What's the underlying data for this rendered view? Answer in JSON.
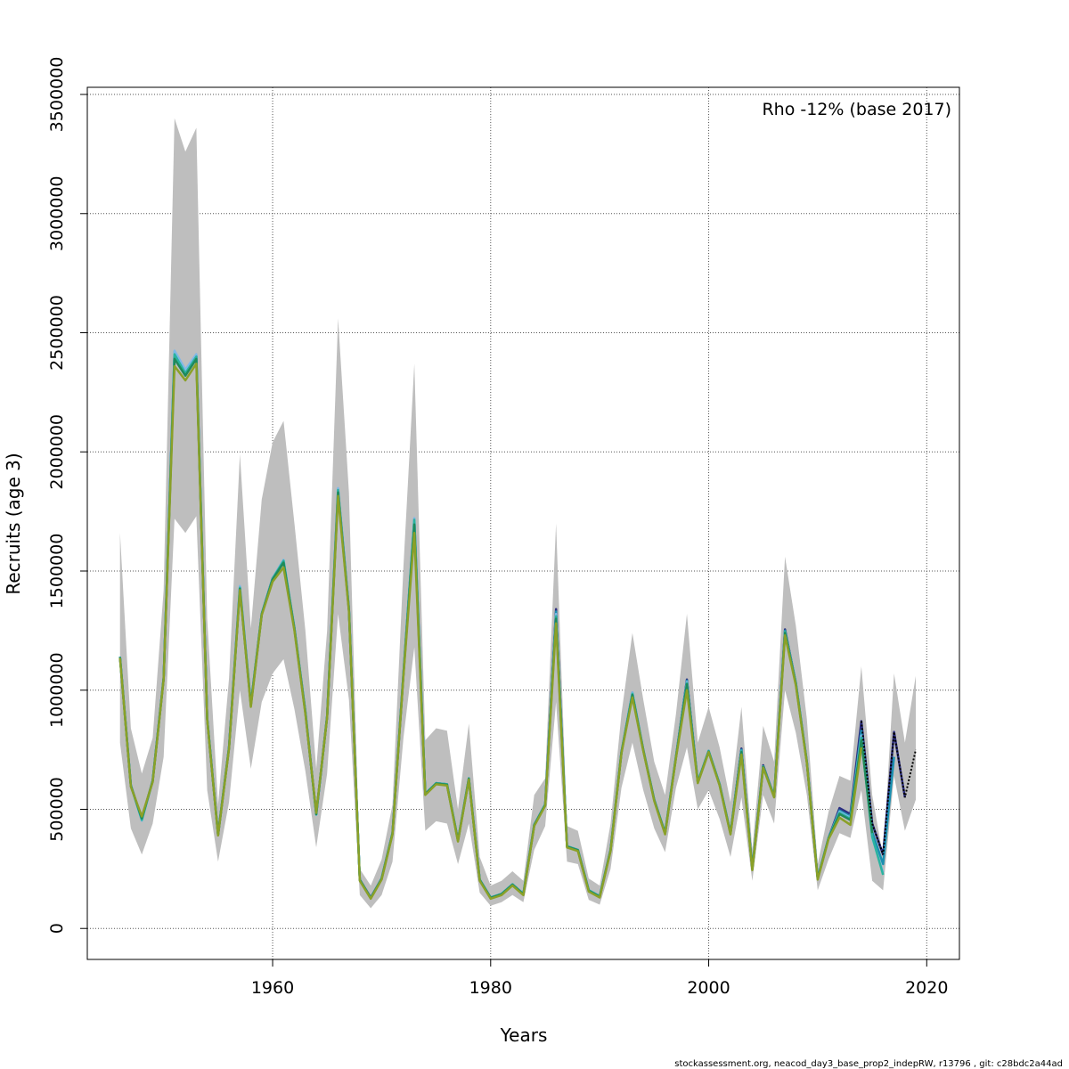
{
  "chart_data": {
    "type": "line",
    "title": "",
    "xlabel": "Years",
    "ylabel": "Recruits (age 3)",
    "annotation": "Rho -12% (base 2017)",
    "footer": "stockassessment.org, neacod_day3_base_prop2_indepRW, r13796 , git: c28bdc2a44ad",
    "xlim": [
      1943,
      2023
    ],
    "ylim": [
      -130000,
      3530000
    ],
    "grid": true,
    "x_ticks": [
      1960,
      1980,
      2000,
      2020
    ],
    "y_ticks": [
      0,
      500000,
      1000000,
      1500000,
      2000000,
      2500000,
      3000000,
      3500000
    ],
    "x_tick_labels": [
      "1960",
      "1980",
      "2000",
      "2020"
    ],
    "y_tick_labels": [
      "0",
      "500000",
      "1000000",
      "1500000",
      "2000000",
      "2500000",
      "3000000",
      "3500000"
    ],
    "confidence_band": {
      "color": "#bebebe",
      "x": [
        1946,
        1947,
        1948,
        1949,
        1950,
        1951,
        1952,
        1953,
        1954,
        1955,
        1956,
        1957,
        1958,
        1959,
        1960,
        1961,
        1962,
        1963,
        1964,
        1965,
        1966,
        1967,
        1968,
        1969,
        1970,
        1971,
        1972,
        1973,
        1974,
        1975,
        1976,
        1977,
        1978,
        1979,
        1980,
        1981,
        1982,
        1983,
        1984,
        1985,
        1986,
        1987,
        1988,
        1989,
        1990,
        1991,
        1992,
        1993,
        1994,
        1995,
        1996,
        1997,
        1998,
        1999,
        2000,
        2001,
        2002,
        2003,
        2004,
        2005,
        2006,
        2007,
        2008,
        2009,
        2010,
        2011,
        2012,
        2013,
        2014,
        2015,
        2016,
        2017,
        2018,
        2019
      ],
      "upper": [
        1660000,
        840000,
        650000,
        800000,
        1420000,
        3400000,
        3260000,
        3360000,
        1300000,
        520000,
        1050000,
        1990000,
        1260000,
        1800000,
        2040000,
        2130000,
        1700000,
        1250000,
        670000,
        1250000,
        2560000,
        1830000,
        250000,
        180000,
        290000,
        520000,
        1520000,
        2370000,
        790000,
        840000,
        830000,
        500000,
        860000,
        300000,
        180000,
        200000,
        240000,
        200000,
        560000,
        630000,
        1700000,
        430000,
        410000,
        210000,
        180000,
        440000,
        900000,
        1240000,
        960000,
        700000,
        560000,
        900000,
        1320000,
        780000,
        930000,
        760000,
        530000,
        930000,
        330000,
        850000,
        700000,
        1560000,
        1270000,
        880000,
        270000,
        490000,
        640000,
        620000,
        1100000,
        560000,
        300000,
        1070000,
        780000,
        1060000
      ],
      "lower": [
        780000,
        420000,
        310000,
        440000,
        720000,
        1720000,
        1660000,
        1730000,
        580000,
        280000,
        530000,
        1000000,
        670000,
        950000,
        1070000,
        1130000,
        920000,
        660000,
        340000,
        650000,
        1320000,
        960000,
        140000,
        85000,
        140000,
        280000,
        800000,
        1180000,
        410000,
        450000,
        440000,
        270000,
        440000,
        150000,
        95000,
        110000,
        140000,
        110000,
        330000,
        430000,
        950000,
        280000,
        270000,
        120000,
        100000,
        250000,
        590000,
        780000,
        580000,
        420000,
        320000,
        590000,
        760000,
        500000,
        580000,
        460000,
        300000,
        550000,
        200000,
        560000,
        440000,
        1000000,
        820000,
        560000,
        160000,
        290000,
        400000,
        380000,
        580000,
        200000,
        160000,
        640000,
        410000,
        540000
      ]
    },
    "series": [
      {
        "color": "#2c2e81",
        "x": [
          1946,
          1947,
          1948,
          1949,
          1950,
          1951,
          1952,
          1953,
          1954,
          1955,
          1956,
          1957,
          1958,
          1959,
          1960,
          1961,
          1962,
          1963,
          1964,
          1965,
          1966,
          1967,
          1968,
          1969,
          1970,
          1971,
          1972,
          1973,
          1974,
          1975,
          1976,
          1977,
          1978,
          1979,
          1980,
          1981,
          1982,
          1983,
          1984,
          1985,
          1986,
          1987,
          1988,
          1989,
          1990,
          1991,
          1992,
          1993,
          1994,
          1995,
          1996,
          1997,
          1998,
          1999,
          2000,
          2001,
          2002,
          2003,
          2004,
          2005,
          2006,
          2007,
          2008,
          2009,
          2010,
          2011,
          2012,
          2013,
          2014,
          2015,
          2016,
          2017,
          2018
        ],
        "values": [
          1140000,
          600000,
          460000,
          620000,
          1050000,
          2410000,
          2330000,
          2400000,
          880000,
          395000,
          760000,
          1430000,
          940000,
          1320000,
          1470000,
          1540000,
          1260000,
          910000,
          480000,
          890000,
          1840000,
          1340000,
          205000,
          130000,
          210000,
          400000,
          1070000,
          1710000,
          565000,
          610000,
          605000,
          370000,
          630000,
          205000,
          130000,
          145000,
          185000,
          145000,
          435000,
          520000,
          1340000,
          345000,
          330000,
          160000,
          135000,
          330000,
          740000,
          985000,
          750000,
          540000,
          400000,
          720000,
          1045000,
          615000,
          745000,
          605000,
          400000,
          755000,
          250000,
          685000,
          555000,
          1255000,
          1030000,
          700000,
          210000,
          380000,
          505000,
          480000,
          870000,
          440000,
          310000,
          825000,
          550000
        ]
      },
      {
        "color": "#1a8fb0",
        "x": [
          1946,
          1947,
          1948,
          1949,
          1950,
          1951,
          1952,
          1953,
          1954,
          1955,
          1956,
          1957,
          1958,
          1959,
          1960,
          1961,
          1962,
          1963,
          1964,
          1965,
          1966,
          1967,
          1968,
          1969,
          1970,
          1971,
          1972,
          1973,
          1974,
          1975,
          1976,
          1977,
          1978,
          1979,
          1980,
          1981,
          1982,
          1983,
          1984,
          1985,
          1986,
          1987,
          1988,
          1989,
          1990,
          1991,
          1992,
          1993,
          1994,
          1995,
          1996,
          1997,
          1998,
          1999,
          2000,
          2001,
          2002,
          2003,
          2004,
          2005,
          2006,
          2007,
          2008,
          2009,
          2010,
          2011,
          2012,
          2013,
          2014,
          2015,
          2016,
          2017
        ],
        "values": [
          1140000,
          600000,
          455000,
          620000,
          1050000,
          2420000,
          2340000,
          2405000,
          880000,
          393000,
          760000,
          1435000,
          940000,
          1320000,
          1470000,
          1545000,
          1260000,
          910000,
          478000,
          890000,
          1845000,
          1340000,
          204000,
          128000,
          210000,
          400000,
          1070000,
          1720000,
          565000,
          610000,
          605000,
          370000,
          630000,
          205000,
          130000,
          145000,
          185000,
          145000,
          435000,
          520000,
          1330000,
          345000,
          330000,
          160000,
          135000,
          330000,
          740000,
          990000,
          750000,
          540000,
          400000,
          720000,
          1040000,
          615000,
          745000,
          605000,
          400000,
          750000,
          250000,
          680000,
          555000,
          1250000,
          1030000,
          700000,
          210000,
          380000,
          495000,
          470000,
          830000,
          405000,
          270000,
          720000
        ]
      },
      {
        "color": "#7fb8e8",
        "x": [
          1946,
          1947,
          1948,
          1949,
          1950,
          1951,
          1952,
          1953,
          1954,
          1955,
          1956,
          1957,
          1958,
          1959,
          1960,
          1961,
          1962,
          1963,
          1964,
          1965,
          1966,
          1967,
          1968,
          1969,
          1970,
          1971,
          1972,
          1973,
          1974,
          1975,
          1976,
          1977,
          1978,
          1979,
          1980,
          1981,
          1982,
          1983,
          1984,
          1985,
          1986,
          1987,
          1988,
          1989,
          1990,
          1991,
          1992,
          1993,
          1994,
          1995,
          1996,
          1997,
          1998,
          1999,
          2000,
          2001,
          2002,
          2003,
          2004,
          2005,
          2006,
          2007,
          2008,
          2009,
          2010,
          2011,
          2012,
          2013,
          2014,
          2015,
          2016
        ],
        "values": [
          1140000,
          600000,
          452000,
          620000,
          1050000,
          2425000,
          2345000,
          2410000,
          880000,
          392000,
          760000,
          1437000,
          940000,
          1320000,
          1470000,
          1547000,
          1260000,
          910000,
          477000,
          890000,
          1848000,
          1340000,
          203000,
          127000,
          210000,
          400000,
          1070000,
          1722000,
          565000,
          610000,
          605000,
          370000,
          630000,
          205000,
          130000,
          145000,
          185000,
          145000,
          435000,
          520000,
          1320000,
          345000,
          330000,
          160000,
          135000,
          330000,
          740000,
          990000,
          750000,
          540000,
          400000,
          720000,
          1035000,
          615000,
          745000,
          605000,
          400000,
          745000,
          250000,
          680000,
          555000,
          1245000,
          1030000,
          700000,
          210000,
          380000,
          490000,
          465000,
          810000,
          380000,
          235000
        ]
      },
      {
        "color": "#2ab3a0",
        "x": [
          1946,
          1947,
          1948,
          1949,
          1950,
          1951,
          1952,
          1953,
          1954,
          1955,
          1956,
          1957,
          1958,
          1959,
          1960,
          1961,
          1962,
          1963,
          1964,
          1965,
          1966,
          1967,
          1968,
          1969,
          1970,
          1971,
          1972,
          1973,
          1974,
          1975,
          1976,
          1977,
          1978,
          1979,
          1980,
          1981,
          1982,
          1983,
          1984,
          1985,
          1986,
          1987,
          1988,
          1989,
          1990,
          1991,
          1992,
          1993,
          1994,
          1995,
          1996,
          1997,
          1998,
          1999,
          2000,
          2001,
          2002,
          2003,
          2004,
          2005,
          2006,
          2007,
          2008,
          2009,
          2010,
          2011,
          2012,
          2013,
          2014,
          2015,
          2016
        ],
        "values": [
          1140000,
          600000,
          455000,
          620000,
          1050000,
          2410000,
          2330000,
          2400000,
          880000,
          393000,
          760000,
          1430000,
          940000,
          1320000,
          1468000,
          1543000,
          1260000,
          910000,
          478000,
          890000,
          1840000,
          1340000,
          204000,
          128000,
          210000,
          400000,
          1070000,
          1715000,
          565000,
          610000,
          605000,
          370000,
          630000,
          205000,
          130000,
          145000,
          185000,
          145000,
          435000,
          520000,
          1310000,
          345000,
          330000,
          160000,
          135000,
          330000,
          740000,
          985000,
          750000,
          540000,
          400000,
          720000,
          1030000,
          615000,
          745000,
          605000,
          400000,
          745000,
          250000,
          680000,
          555000,
          1245000,
          1030000,
          700000,
          210000,
          380000,
          485000,
          460000,
          800000,
          385000,
          225000
        ]
      },
      {
        "color": "#1f8a5a",
        "x": [
          1946,
          1947,
          1948,
          1949,
          1950,
          1951,
          1952,
          1953,
          1954,
          1955,
          1956,
          1957,
          1958,
          1959,
          1960,
          1961,
          1962,
          1963,
          1964,
          1965,
          1966,
          1967,
          1968,
          1969,
          1970,
          1971,
          1972,
          1973,
          1974,
          1975,
          1976,
          1977,
          1978,
          1979,
          1980,
          1981,
          1982,
          1983,
          1984,
          1985,
          1986,
          1987,
          1988,
          1989,
          1990,
          1991,
          1992,
          1993,
          1994,
          1995,
          1996,
          1997,
          1998,
          1999,
          2000,
          2001,
          2002,
          2003,
          2004,
          2005,
          2006,
          2007,
          2008,
          2009,
          2010,
          2011,
          2012,
          2013,
          2014,
          2015
        ],
        "values": [
          1138000,
          598000,
          462000,
          618000,
          1048000,
          2390000,
          2320000,
          2390000,
          878000,
          392000,
          758000,
          1425000,
          935000,
          1318000,
          1465000,
          1535000,
          1255000,
          905000,
          480000,
          888000,
          1830000,
          1335000,
          203000,
          127000,
          208000,
          398000,
          1065000,
          1695000,
          563000,
          608000,
          603000,
          368000,
          628000,
          203000,
          128000,
          143000,
          183000,
          143000,
          433000,
          518000,
          1300000,
          343000,
          328000,
          158000,
          133000,
          328000,
          738000,
          980000,
          748000,
          538000,
          398000,
          718000,
          1025000,
          612000,
          742000,
          602000,
          398000,
          740000,
          248000,
          678000,
          552000,
          1240000,
          1025000,
          698000,
          208000,
          378000,
          480000,
          455000,
          790000,
          400000
        ]
      },
      {
        "color": "#8aa028",
        "x": [
          1946,
          1947,
          1948,
          1949,
          1950,
          1951,
          1952,
          1953,
          1954,
          1955,
          1956,
          1957,
          1958,
          1959,
          1960,
          1961,
          1962,
          1963,
          1964,
          1965,
          1966,
          1967,
          1968,
          1969,
          1970,
          1971,
          1972,
          1973,
          1974,
          1975,
          1976,
          1977,
          1978,
          1979,
          1980,
          1981,
          1982,
          1983,
          1984,
          1985,
          1986,
          1987,
          1988,
          1989,
          1990,
          1991,
          1992,
          1993,
          1994,
          1995,
          1996,
          1997,
          1998,
          1999,
          2000,
          2001,
          2002,
          2003,
          2004,
          2005,
          2006,
          2007,
          2008,
          2009,
          2010,
          2011,
          2012,
          2013,
          2014
        ],
        "values": [
          1135000,
          595000,
          470000,
          615000,
          1045000,
          2360000,
          2300000,
          2370000,
          875000,
          390000,
          755000,
          1420000,
          930000,
          1315000,
          1455000,
          1515000,
          1250000,
          900000,
          485000,
          885000,
          1815000,
          1330000,
          200000,
          125000,
          205000,
          395000,
          1060000,
          1660000,
          560000,
          605000,
          600000,
          365000,
          625000,
          200000,
          125000,
          140000,
          180000,
          140000,
          430000,
          515000,
          1280000,
          340000,
          325000,
          155000,
          130000,
          325000,
          735000,
          970000,
          745000,
          535000,
          395000,
          715000,
          1000000,
          610000,
          740000,
          600000,
          395000,
          730000,
          245000,
          675000,
          550000,
          1230000,
          1020000,
          695000,
          205000,
          375000,
          465000,
          435000,
          760000
        ]
      }
    ],
    "dotted_extension": {
      "color": "#000000",
      "x": [
        2014,
        2015,
        2016,
        2017,
        2018,
        2019
      ],
      "values": [
        870000,
        440000,
        310000,
        825000,
        550000,
        750000
      ]
    }
  }
}
